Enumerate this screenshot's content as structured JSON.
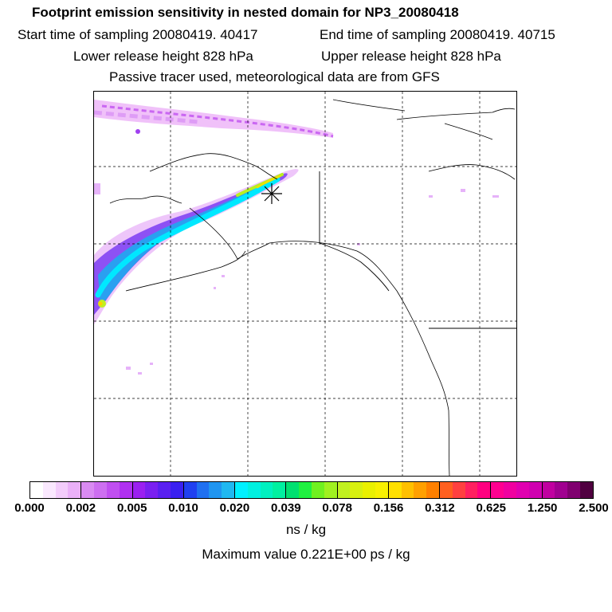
{
  "header": {
    "title": "Footprint emission sensitivity in nested domain for NP3_20080418",
    "start": "Start time of sampling 20080419. 40417",
    "end": "End time of sampling 20080419. 40715",
    "lower": "Lower release height  828 hPa",
    "upper": "Upper release height  828 hPa",
    "passive": "Passive tracer used, meteorological data are from GFS"
  },
  "map": {
    "release_marker": "release-location-star",
    "grid": "dashed"
  },
  "colorbar": {
    "ticks": [
      "0.000",
      "0.002",
      "0.005",
      "0.010",
      "0.020",
      "0.039",
      "0.078",
      "0.156",
      "0.312",
      "0.625",
      "1.250",
      "2.500"
    ],
    "colors": [
      "#ffffff",
      "#fae8fe",
      "#f3ccfb",
      "#eab0f8",
      "#d98bf2",
      "#cd6ff0",
      "#c04ff0",
      "#b030f0",
      "#9b20f0",
      "#7a20f0",
      "#5a20f0",
      "#3a20f0",
      "#2040f0",
      "#2070f0",
      "#2095f0",
      "#20b8f0",
      "#00f0ff",
      "#00f0e0",
      "#00f0c0",
      "#00f0a0",
      "#00e070",
      "#20f040",
      "#70f020",
      "#a0f020",
      "#c0f020",
      "#d8f010",
      "#eaf000",
      "#f8f000",
      "#ffe000",
      "#ffc000",
      "#ffa000",
      "#ff8000",
      "#ff6020",
      "#ff4040",
      "#ff2060",
      "#ff0080",
      "#ff0090",
      "#f000a0",
      "#e000b0",
      "#d000b0",
      "#c000a0",
      "#a00090",
      "#800070",
      "#500040"
    ],
    "units": "ns / kg",
    "max_value": "Maximum value  0.221E+00 ps / kg"
  }
}
